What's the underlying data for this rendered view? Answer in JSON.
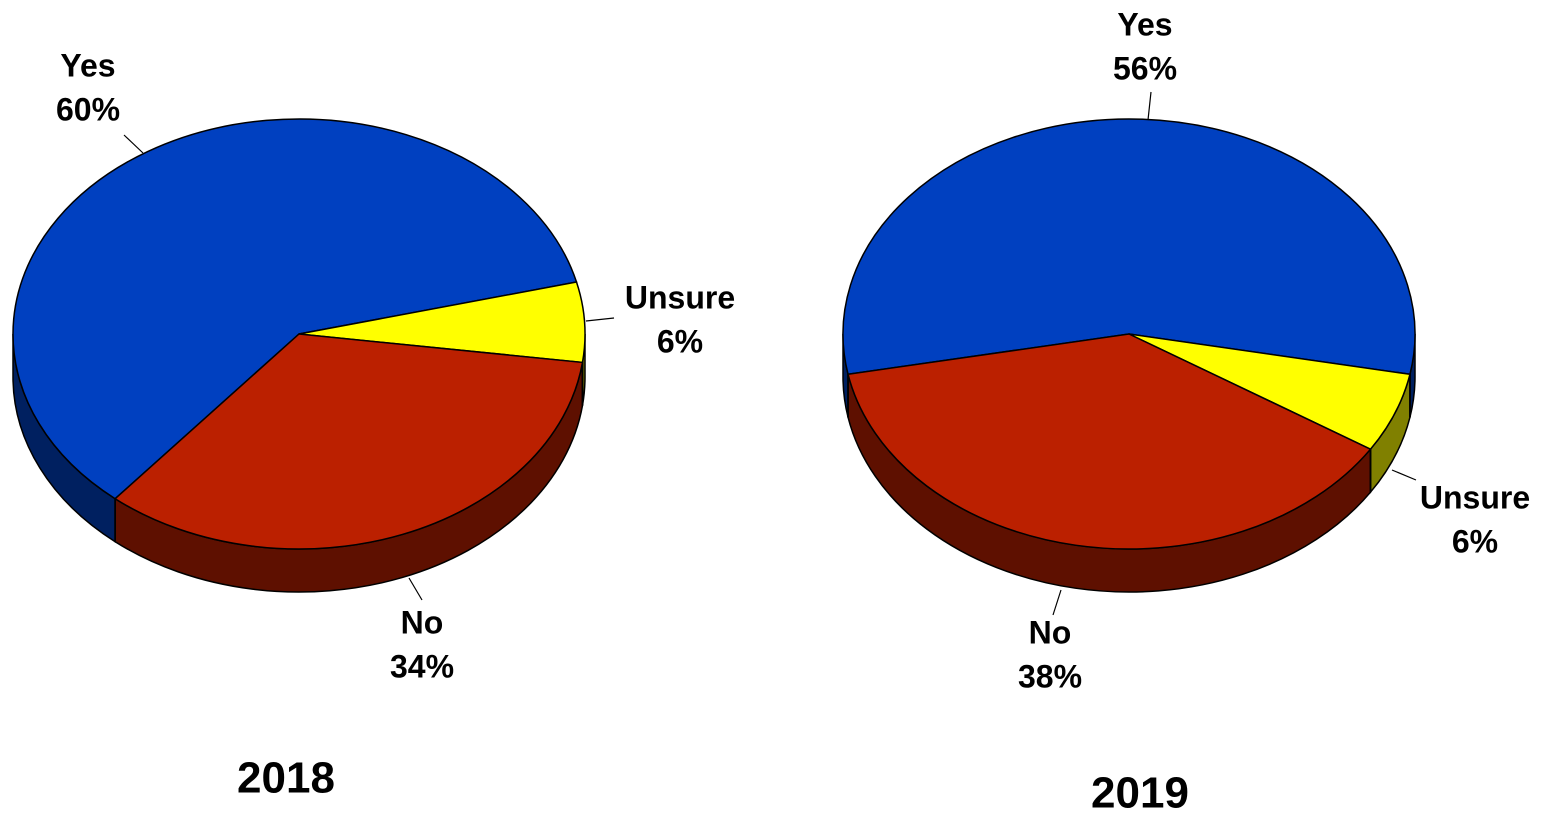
{
  "chart_data": [
    {
      "type": "pie",
      "title": "2018",
      "slices": [
        {
          "label": "Yes",
          "value": 60,
          "value_label": "60%",
          "color": "#0040C0"
        },
        {
          "label": "Unsure",
          "value": 6,
          "value_label": "6%",
          "color": "#FFFF00"
        },
        {
          "label": "No",
          "value": 34,
          "value_label": "34%",
          "color": "#BB2000"
        }
      ],
      "style": "3d"
    },
    {
      "type": "pie",
      "title": "2019",
      "slices": [
        {
          "label": "Yes",
          "value": 56,
          "value_label": "56%",
          "color": "#0040C0"
        },
        {
          "label": "Unsure",
          "value": 6,
          "value_label": "6%",
          "color": "#FFFF00"
        },
        {
          "label": "No",
          "value": 38,
          "value_label": "38%",
          "color": "#BB2000"
        }
      ],
      "style": "3d"
    }
  ]
}
